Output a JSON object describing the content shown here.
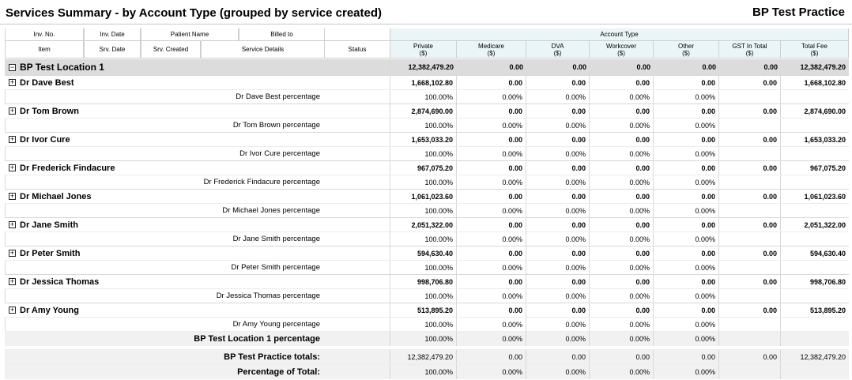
{
  "title": "Services Summary - by Account Type (grouped by service created)",
  "practice": "BP Test Practice",
  "header": {
    "row1": [
      "Inv. No.",
      "Inv. Date",
      "Patient Name",
      "Billed to"
    ],
    "row2": [
      "Item",
      "Srv. Date",
      "Srv. Created",
      "Service Details"
    ],
    "status": "Status",
    "account_type": "Account Type",
    "columns": [
      {
        "l1": "Private",
        "l2": "($)"
      },
      {
        "l1": "Medicare",
        "l2": "($)"
      },
      {
        "l1": "DVA",
        "l2": "($)"
      },
      {
        "l1": "Workcover",
        "l2": "($)"
      },
      {
        "l1": "Other",
        "l2": "($)"
      },
      {
        "l1": "GST In Total",
        "l2": "($)"
      },
      {
        "l1": "Total Fee",
        "l2": "($)"
      }
    ]
  },
  "location": {
    "name": "BP Test Location 1",
    "values": [
      "12,382,479.20",
      "0.00",
      "0.00",
      "0.00",
      "0.00",
      "0.00",
      "12,382,479.20"
    ],
    "pct_label": "BP Test Location 1 percentage",
    "pct_values": [
      "100.00%",
      "0.00%",
      "0.00%",
      "0.00%",
      "0.00%"
    ]
  },
  "doctors": [
    {
      "name": "Dr Dave Best",
      "values": [
        "1,668,102.80",
        "0.00",
        "0.00",
        "0.00",
        "0.00",
        "0.00",
        "1,668,102.80"
      ],
      "pct_label": "Dr Dave Best percentage",
      "pct_values": [
        "100.00%",
        "0.00%",
        "0.00%",
        "0.00%",
        "0.00%"
      ]
    },
    {
      "name": "Dr Tom Brown",
      "values": [
        "2,874,690.00",
        "0.00",
        "0.00",
        "0.00",
        "0.00",
        "0.00",
        "2,874,690.00"
      ],
      "pct_label": "Dr Tom Brown percentage",
      "pct_values": [
        "100.00%",
        "0.00%",
        "0.00%",
        "0.00%",
        "0.00%"
      ]
    },
    {
      "name": "Dr Ivor Cure",
      "values": [
        "1,653,033.20",
        "0.00",
        "0.00",
        "0.00",
        "0.00",
        "0.00",
        "1,653,033.20"
      ],
      "pct_label": "Dr Ivor Cure percentage",
      "pct_values": [
        "100.00%",
        "0.00%",
        "0.00%",
        "0.00%",
        "0.00%"
      ]
    },
    {
      "name": "Dr Frederick Findacure",
      "values": [
        "967,075.20",
        "0.00",
        "0.00",
        "0.00",
        "0.00",
        "0.00",
        "967,075.20"
      ],
      "pct_label": "Dr Frederick Findacure percentage",
      "pct_values": [
        "100.00%",
        "0.00%",
        "0.00%",
        "0.00%",
        "0.00%"
      ]
    },
    {
      "name": "Dr Michael Jones",
      "values": [
        "1,061,023.60",
        "0.00",
        "0.00",
        "0.00",
        "0.00",
        "0.00",
        "1,061,023.60"
      ],
      "pct_label": "Dr Michael Jones percentage",
      "pct_values": [
        "100.00%",
        "0.00%",
        "0.00%",
        "0.00%",
        "0.00%"
      ]
    },
    {
      "name": "Dr Jane Smith",
      "values": [
        "2,051,322.00",
        "0.00",
        "0.00",
        "0.00",
        "0.00",
        "0.00",
        "2,051,322.00"
      ],
      "pct_label": "Dr Jane Smith percentage",
      "pct_values": [
        "100.00%",
        "0.00%",
        "0.00%",
        "0.00%",
        "0.00%"
      ]
    },
    {
      "name": "Dr Peter Smith",
      "values": [
        "594,630.40",
        "0.00",
        "0.00",
        "0.00",
        "0.00",
        "0.00",
        "594,630.40"
      ],
      "pct_label": "Dr Peter Smith percentage",
      "pct_values": [
        "100.00%",
        "0.00%",
        "0.00%",
        "0.00%",
        "0.00%"
      ]
    },
    {
      "name": "Dr Jessica Thomas",
      "values": [
        "998,706.80",
        "0.00",
        "0.00",
        "0.00",
        "0.00",
        "0.00",
        "998,706.80"
      ],
      "pct_label": "Dr Jessica Thomas percentage",
      "pct_values": [
        "100.00%",
        "0.00%",
        "0.00%",
        "0.00%",
        "0.00%"
      ]
    },
    {
      "name": "Dr Amy Young",
      "values": [
        "513,895.20",
        "0.00",
        "0.00",
        "0.00",
        "0.00",
        "0.00",
        "513,895.20"
      ],
      "pct_label": "Dr Amy Young percentage",
      "pct_values": [
        "100.00%",
        "0.00%",
        "0.00%",
        "0.00%",
        "0.00%"
      ]
    }
  ],
  "totals": {
    "label": "BP Test Practice totals:",
    "values": [
      "12,382,479.20",
      "0.00",
      "0.00",
      "0.00",
      "0.00",
      "0.00",
      "12,382,479.20"
    ],
    "pct_label": "Percentage of Total:",
    "pct_values": [
      "100.00%",
      "0.00%",
      "0.00%",
      "0.00%",
      "0.00%"
    ]
  },
  "icons": {
    "expand": "plus-box-icon",
    "collapse": "minus-box-icon"
  },
  "expand_glyph": "+",
  "collapse_glyph": "−"
}
